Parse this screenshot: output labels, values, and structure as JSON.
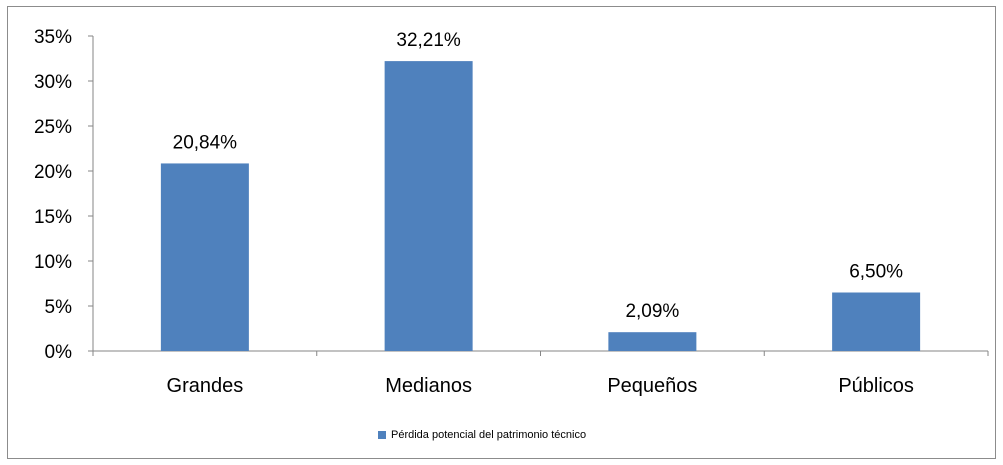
{
  "chart_data": {
    "type": "bar",
    "categories": [
      "Grandes",
      "Medianos",
      "Pequeños",
      "Públicos"
    ],
    "series": [
      {
        "name": "Pérdida potencial del patrimonio técnico",
        "values": [
          20.84,
          32.21,
          2.09,
          6.5
        ],
        "value_labels": [
          "20,84%",
          "32,21%",
          "2,09%",
          "6,50%"
        ],
        "color": "#4f81bd"
      }
    ],
    "yticks": [
      {
        "value": 0,
        "label": "0%"
      },
      {
        "value": 5,
        "label": "5%"
      },
      {
        "value": 10,
        "label": "10%"
      },
      {
        "value": 15,
        "label": "15%"
      },
      {
        "value": 20,
        "label": "20%"
      },
      {
        "value": 25,
        "label": "25%"
      },
      {
        "value": 30,
        "label": "30%"
      },
      {
        "value": 35,
        "label": "35%"
      }
    ],
    "ylim": [
      0,
      35
    ],
    "grid": false,
    "legend_position": "bottom",
    "title": "",
    "xlabel": "",
    "ylabel": ""
  }
}
